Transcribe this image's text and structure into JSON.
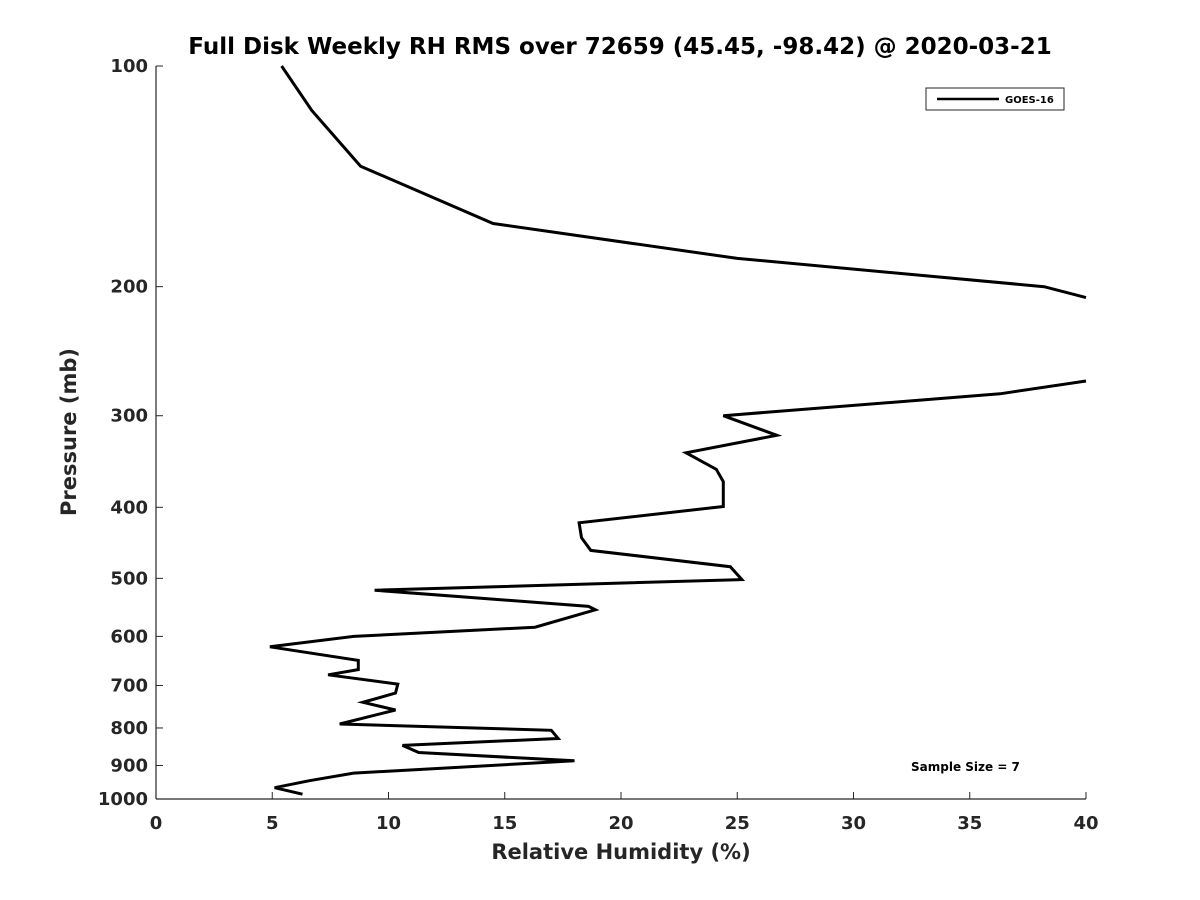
{
  "chart_data": {
    "type": "line",
    "title": "Full Disk Weekly RH RMS over 72659 (45.45, -98.42) @ 2020-03-21",
    "xlabel": "Relative Humidity (%)",
    "ylabel": "Pressure (mb)",
    "xlim": [
      0,
      40
    ],
    "ylim": [
      100,
      1000
    ],
    "y_scale": "log",
    "y_reversed": true,
    "x_ticks": [
      0,
      5,
      10,
      15,
      20,
      25,
      30,
      35,
      40
    ],
    "y_ticks": [
      100,
      200,
      300,
      400,
      500,
      600,
      700,
      800,
      900,
      1000
    ],
    "grid": false,
    "legend_position": "top-right",
    "annotation": "Sample Size = 7",
    "series": [
      {
        "name": "GOES-16",
        "color": "#000000",
        "segments": [
          [
            [
              5.4,
              100
            ],
            [
              6.7,
              115
            ],
            [
              8.8,
              137
            ],
            [
              14.5,
              164
            ],
            [
              25.0,
              183
            ],
            [
              38.2,
              200
            ],
            [
              40.0,
              207
            ]
          ],
          [
            [
              40.0,
              269
            ],
            [
              36.3,
              280
            ],
            [
              24.4,
              300
            ],
            [
              26.7,
              319
            ],
            [
              22.8,
              337
            ],
            [
              24.1,
              355
            ],
            [
              24.4,
              369
            ],
            [
              24.4,
              399
            ],
            [
              18.2,
              420
            ],
            [
              18.3,
              440
            ],
            [
              18.7,
              458
            ],
            [
              24.7,
              482
            ],
            [
              25.2,
              502
            ],
            [
              9.4,
              519
            ],
            [
              18.6,
              546
            ],
            [
              18.9,
              552
            ],
            [
              16.3,
              583
            ],
            [
              8.5,
              600
            ],
            [
              4.9,
              620
            ],
            [
              8.7,
              647
            ],
            [
              8.7,
              666
            ],
            [
              7.4,
              677
            ],
            [
              10.4,
              697
            ],
            [
              10.3,
              717
            ],
            [
              8.9,
              738
            ],
            [
              10.3,
              756
            ],
            [
              7.9,
              790
            ],
            [
              17.0,
              806
            ],
            [
              17.3,
              827
            ],
            [
              10.6,
              845
            ],
            [
              11.3,
              864
            ],
            [
              18.0,
              887
            ],
            [
              8.5,
              922
            ],
            [
              6.6,
              944
            ],
            [
              5.1,
              965
            ],
            [
              6.3,
              985
            ]
          ]
        ]
      }
    ]
  }
}
